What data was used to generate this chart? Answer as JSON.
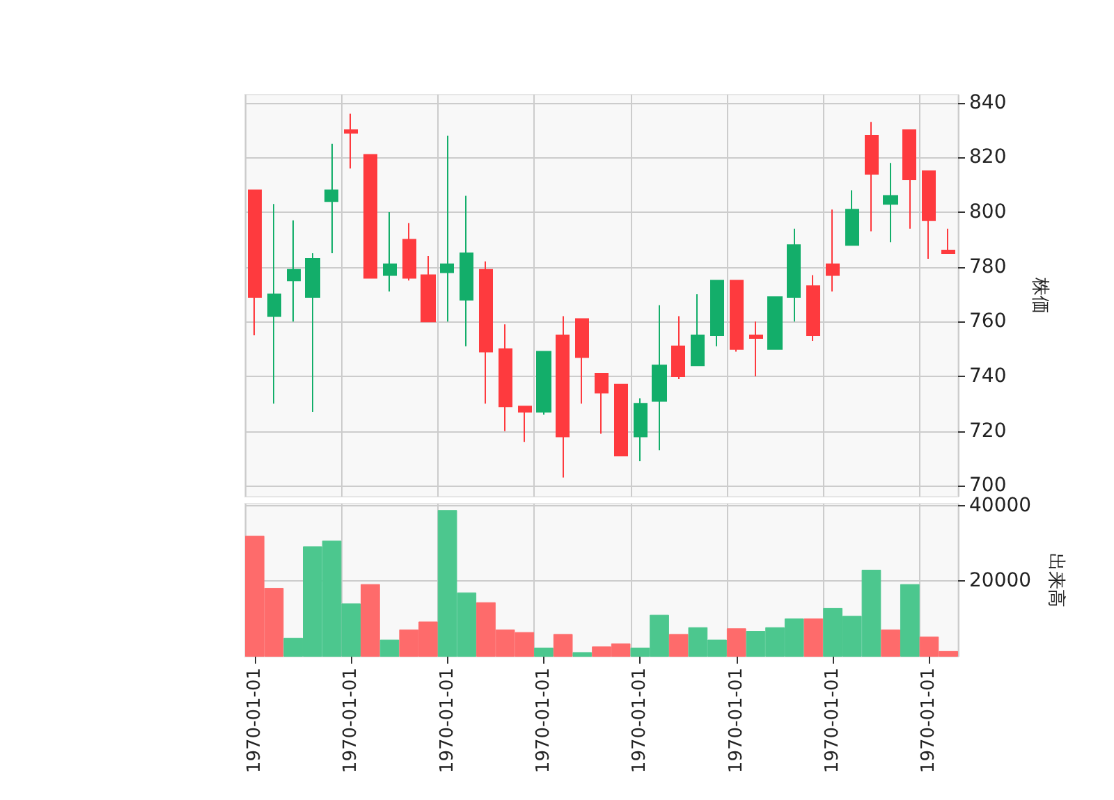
{
  "chart_data": [
    {
      "type": "candlestick",
      "ylabel": "株価",
      "tick_labels": "y",
      "grid": true,
      "categories": [
        "1970-01-01",
        null,
        null,
        null,
        null,
        "1970-01-01",
        null,
        null,
        null,
        null,
        "1970-01-01",
        null,
        null,
        null,
        null,
        "1970-01-01",
        null,
        null,
        null,
        null,
        "1970-01-01",
        null,
        null,
        null,
        null,
        "1970-01-01",
        null,
        null,
        null,
        null,
        "1970-01-01",
        null,
        null,
        null,
        null,
        "1970-01-01",
        null
      ],
      "ohlc": [
        [
          808,
          808,
          755,
          769
        ],
        [
          762,
          803,
          730,
          770
        ],
        [
          775,
          797,
          760,
          779
        ],
        [
          769,
          785,
          727,
          783
        ],
        [
          804,
          825,
          785,
          808
        ],
        [
          830,
          836,
          816,
          829
        ],
        [
          821,
          821,
          776,
          776
        ],
        [
          777,
          800,
          771,
          781
        ],
        [
          790,
          796,
          775,
          776
        ],
        [
          777,
          784,
          760,
          760
        ],
        [
          778,
          828,
          760,
          781
        ],
        [
          768,
          806,
          751,
          785
        ],
        [
          779,
          782,
          730,
          749
        ],
        [
          750,
          759,
          720,
          729
        ],
        [
          729,
          729,
          716,
          727
        ],
        [
          727,
          749,
          726,
          749
        ],
        [
          755,
          762,
          703,
          718
        ],
        [
          761,
          761,
          730,
          747
        ],
        [
          741,
          741,
          719,
          734
        ],
        [
          737,
          737,
          711,
          711
        ],
        [
          718,
          732,
          709,
          730
        ],
        [
          731,
          766,
          713,
          744
        ],
        [
          751,
          762,
          739,
          740
        ],
        [
          744,
          770,
          744,
          755
        ],
        [
          755,
          775,
          751,
          775
        ],
        [
          775,
          775,
          749,
          750
        ],
        [
          755,
          760,
          740,
          754
        ],
        [
          750,
          769,
          750,
          769
        ],
        [
          769,
          794,
          760,
          788
        ],
        [
          773,
          777,
          753,
          755
        ],
        [
          781,
          801,
          771,
          777
        ],
        [
          788,
          808,
          788,
          801
        ],
        [
          828,
          833,
          793,
          814
        ],
        [
          803,
          818,
          789,
          806
        ],
        [
          830,
          830,
          794,
          812
        ],
        [
          815,
          815,
          783,
          797
        ],
        [
          786,
          794,
          785,
          785
        ]
      ],
      "colors": [
        "#fe3a3e",
        "#13ae6a",
        "#13ae6a",
        "#13ae6a",
        "#13ae6a",
        "#fe3a3e",
        "#fe3a3e",
        "#13ae6a",
        "#fe3a3e",
        "#fe3a3e",
        "#13ae6a",
        "#13ae6a",
        "#fe3a3e",
        "#fe3a3e",
        "#fe3a3e",
        "#13ae6a",
        "#fe3a3e",
        "#fe3a3e",
        "#fe3a3e",
        "#fe3a3e",
        "#13ae6a",
        "#13ae6a",
        "#fe3a3e",
        "#13ae6a",
        "#13ae6a",
        "#fe3a3e",
        "#fe3a3e",
        "#13ae6a",
        "#13ae6a",
        "#fe3a3e",
        "#fe3a3e",
        "#13ae6a",
        "#fe3a3e",
        "#13ae6a",
        "#fe3a3e",
        "#fe3a3e",
        "#fe3a3e"
      ],
      "ylim": [
        696,
        843
      ],
      "yticks": [
        700,
        720,
        740,
        760,
        780,
        800,
        820,
        840
      ]
    },
    {
      "type": "bar",
      "ylabel": "出来高",
      "grid": true,
      "categories": [
        "1970-01-01",
        null,
        null,
        null,
        null,
        "1970-01-01",
        null,
        null,
        null,
        null,
        "1970-01-01",
        null,
        null,
        null,
        null,
        "1970-01-01",
        null,
        null,
        null,
        null,
        "1970-01-01",
        null,
        null,
        null,
        null,
        "1970-01-01",
        null,
        null,
        null,
        null,
        "1970-01-01",
        null,
        null,
        null,
        null,
        "1970-01-01",
        null
      ],
      "values": [
        32000,
        18200,
        5000,
        29200,
        30700,
        14100,
        19200,
        4500,
        7200,
        9300,
        38800,
        17000,
        14400,
        7200,
        6500,
        2400,
        6000,
        1200,
        2700,
        3500,
        2400,
        11100,
        6000,
        7800,
        4500,
        7500,
        6800,
        7800,
        10100,
        10100,
        12900,
        10800,
        23000,
        7200,
        19200,
        5300,
        1500
      ],
      "colors": [
        "#fe6b6b",
        "#fe6b6b",
        "#4cc78e",
        "#4cc78e",
        "#4cc78e",
        "#4cc78e",
        "#fe6b6b",
        "#4cc78e",
        "#fe6b6b",
        "#fe6b6b",
        "#4cc78e",
        "#4cc78e",
        "#fe6b6b",
        "#fe6b6b",
        "#fe6b6b",
        "#4cc78e",
        "#fe6b6b",
        "#4cc78e",
        "#fe6b6b",
        "#fe6b6b",
        "#4cc78e",
        "#4cc78e",
        "#fe6b6b",
        "#4cc78e",
        "#4cc78e",
        "#fe6b6b",
        "#4cc78e",
        "#4cc78e",
        "#4cc78e",
        "#fe6b6b",
        "#4cc78e",
        "#4cc78e",
        "#4cc78e",
        "#fe6b6b",
        "#4cc78e",
        "#fe6b6b",
        "#fe6b6b"
      ],
      "ylim": [
        0,
        40500
      ],
      "yticks": [
        20000,
        40000
      ]
    }
  ]
}
